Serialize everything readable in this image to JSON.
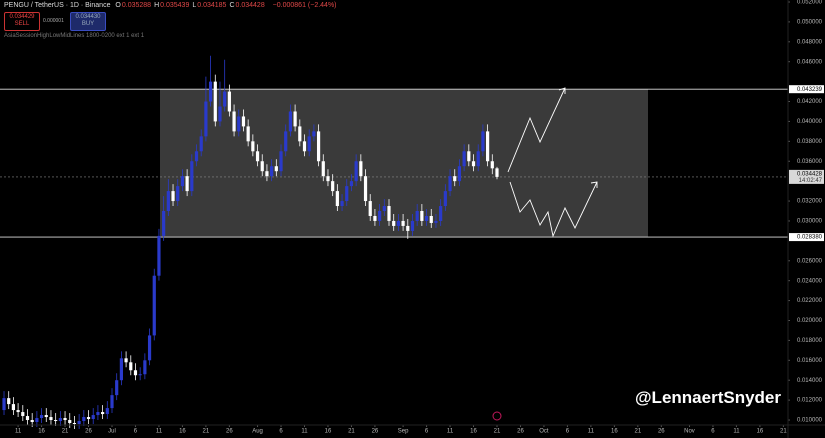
{
  "header": {
    "symbol": "PENGU / TetherUS · 1D · Binance",
    "ohlc": [
      {
        "label": "O",
        "value": "0.035288"
      },
      {
        "label": "H",
        "value": "0.035439"
      },
      {
        "label": "L",
        "value": "0.034185"
      },
      {
        "label": "C",
        "value": "0.034428"
      }
    ],
    "change": "−0.000861 (−2.44%)",
    "sell": {
      "price": "0.034429",
      "label": "SELL"
    },
    "spread": "0.000001",
    "buy": {
      "price": "0.034430",
      "label": "BUY"
    },
    "indicator": "AsiaSessionHighLowMidLines 1800-0200 ext 1 ext 1"
  },
  "watermark": "@LennaertSnyder",
  "chart_data": {
    "type": "candlestick",
    "up_color": "#2a3acb",
    "down_color": "#ffffff",
    "x": [
      "06-08",
      "06-09",
      "06-10",
      "06-11",
      "06-12",
      "06-13",
      "06-14",
      "06-15",
      "06-16",
      "06-17",
      "06-18",
      "06-19",
      "06-20",
      "06-21",
      "06-22",
      "06-23",
      "06-24",
      "06-25",
      "06-26",
      "06-27",
      "06-28",
      "06-29",
      "06-30",
      "07-01",
      "07-02",
      "07-03",
      "07-04",
      "07-05",
      "07-06",
      "07-07",
      "07-08",
      "07-09",
      "07-10",
      "07-11",
      "07-12",
      "07-13",
      "07-14",
      "07-15",
      "07-16",
      "07-17",
      "07-18",
      "07-19",
      "07-20",
      "07-21",
      "07-22",
      "07-23",
      "07-24",
      "07-25",
      "07-26",
      "07-27",
      "07-28",
      "07-29",
      "07-30",
      "07-31",
      "08-01",
      "08-02",
      "08-03",
      "08-04",
      "08-05",
      "08-06",
      "08-07",
      "08-08",
      "08-09",
      "08-10",
      "08-11",
      "08-12",
      "08-13",
      "08-14",
      "08-15",
      "08-16",
      "08-17",
      "08-18",
      "08-19",
      "08-20",
      "08-21",
      "08-22",
      "08-23",
      "08-24",
      "08-25",
      "08-26",
      "08-27",
      "08-28",
      "08-29",
      "08-30",
      "08-31",
      "09-01",
      "09-02",
      "09-03",
      "09-04",
      "09-05",
      "09-06",
      "09-07",
      "09-08",
      "09-09",
      "09-10",
      "09-11",
      "09-12",
      "09-13",
      "09-14",
      "09-15",
      "09-16",
      "09-17",
      "09-18",
      "09-19",
      "09-20",
      "09-21"
    ],
    "open": [
      0.011,
      0.0122,
      0.0116,
      0.011,
      0.0108,
      0.0104,
      0.01,
      0.0098,
      0.0102,
      0.0105,
      0.0103,
      0.01,
      0.0099,
      0.0102,
      0.01,
      0.0097,
      0.0096,
      0.0099,
      0.0103,
      0.0101,
      0.0105,
      0.0108,
      0.0106,
      0.0112,
      0.0125,
      0.014,
      0.0162,
      0.0158,
      0.015,
      0.0145,
      0.0146,
      0.016,
      0.0185,
      0.0245,
      0.0285,
      0.031,
      0.033,
      0.032,
      0.0335,
      0.0345,
      0.033,
      0.036,
      0.037,
      0.0385,
      0.042,
      0.044,
      0.04,
      0.0415,
      0.043,
      0.041,
      0.039,
      0.0405,
      0.0395,
      0.038,
      0.037,
      0.036,
      0.035,
      0.0345,
      0.0355,
      0.035,
      0.037,
      0.039,
      0.041,
      0.0395,
      0.038,
      0.037,
      0.0385,
      0.039,
      0.036,
      0.0345,
      0.034,
      0.033,
      0.0315,
      0.032,
      0.0335,
      0.034,
      0.036,
      0.0345,
      0.032,
      0.0305,
      0.03,
      0.031,
      0.0315,
      0.03,
      0.0295,
      0.03,
      0.0295,
      0.029,
      0.03,
      0.031,
      0.03,
      0.0305,
      0.0298,
      0.03,
      0.0315,
      0.033,
      0.0345,
      0.034,
      0.0355,
      0.037,
      0.036,
      0.0355,
      0.037,
      0.039,
      0.036,
      0.035288
    ],
    "high": [
      0.0129,
      0.0129,
      0.0123,
      0.0117,
      0.0115,
      0.0111,
      0.0107,
      0.0109,
      0.0112,
      0.0112,
      0.011,
      0.0107,
      0.0109,
      0.0109,
      0.0107,
      0.0104,
      0.0106,
      0.011,
      0.011,
      0.0112,
      0.0115,
      0.0115,
      0.0119,
      0.0132,
      0.0147,
      0.0169,
      0.0169,
      0.0165,
      0.0157,
      0.0153,
      0.0167,
      0.0192,
      0.0252,
      0.0292,
      0.0325,
      0.0342,
      0.0337,
      0.0342,
      0.0352,
      0.0352,
      0.0367,
      0.0377,
      0.0392,
      0.0445,
      0.0466,
      0.0447,
      0.044,
      0.0462,
      0.0437,
      0.0417,
      0.0412,
      0.0412,
      0.0402,
      0.0387,
      0.0377,
      0.0367,
      0.0357,
      0.0362,
      0.0362,
      0.0377,
      0.0397,
      0.0417,
      0.0417,
      0.0402,
      0.0387,
      0.0392,
      0.0397,
      0.0397,
      0.0367,
      0.0352,
      0.0347,
      0.0337,
      0.0327,
      0.0342,
      0.0347,
      0.0367,
      0.0367,
      0.0352,
      0.0327,
      0.0312,
      0.0317,
      0.0322,
      0.0322,
      0.0307,
      0.0307,
      0.0307,
      0.0302,
      0.0307,
      0.0317,
      0.0317,
      0.0312,
      0.0312,
      0.0307,
      0.0322,
      0.0337,
      0.0352,
      0.0352,
      0.0362,
      0.0377,
      0.0377,
      0.0367,
      0.0377,
      0.0397,
      0.0397,
      0.0367,
      0.035439
    ],
    "low": [
      0.0105,
      0.0111,
      0.0105,
      0.0103,
      0.0099,
      0.0095,
      0.0093,
      0.0093,
      0.0097,
      0.0098,
      0.0095,
      0.0094,
      0.0094,
      0.0095,
      0.0092,
      0.0091,
      0.0091,
      0.0094,
      0.0096,
      0.0096,
      0.01,
      0.0101,
      0.0101,
      0.0107,
      0.012,
      0.0135,
      0.0153,
      0.0145,
      0.014,
      0.014,
      0.0141,
      0.0155,
      0.018,
      0.024,
      0.028,
      0.0305,
      0.0315,
      0.0315,
      0.033,
      0.0325,
      0.0325,
      0.0355,
      0.0365,
      0.038,
      0.0415,
      0.0395,
      0.0395,
      0.041,
      0.0405,
      0.0385,
      0.0385,
      0.039,
      0.0375,
      0.0365,
      0.0355,
      0.0345,
      0.034,
      0.034,
      0.0345,
      0.0345,
      0.0365,
      0.0385,
      0.039,
      0.0375,
      0.0365,
      0.0365,
      0.038,
      0.0355,
      0.034,
      0.0335,
      0.0325,
      0.031,
      0.031,
      0.0315,
      0.033,
      0.0335,
      0.034,
      0.0315,
      0.03,
      0.0295,
      0.0295,
      0.0305,
      0.0295,
      0.029,
      0.029,
      0.029,
      0.0282,
      0.0285,
      0.0295,
      0.0295,
      0.0295,
      0.0293,
      0.0293,
      0.0295,
      0.031,
      0.0325,
      0.0335,
      0.0335,
      0.035,
      0.0355,
      0.035,
      0.035,
      0.0365,
      0.0355,
      0.0347,
      0.034185
    ],
    "close": [
      0.0122,
      0.0116,
      0.011,
      0.0108,
      0.0104,
      0.01,
      0.0098,
      0.0102,
      0.0105,
      0.0103,
      0.01,
      0.0099,
      0.0102,
      0.01,
      0.0097,
      0.0096,
      0.0099,
      0.0103,
      0.0101,
      0.0105,
      0.0108,
      0.0106,
      0.0112,
      0.0125,
      0.014,
      0.0162,
      0.0158,
      0.015,
      0.0145,
      0.0146,
      0.016,
      0.0185,
      0.0245,
      0.0285,
      0.031,
      0.033,
      0.032,
      0.0335,
      0.0345,
      0.033,
      0.036,
      0.037,
      0.0385,
      0.042,
      0.044,
      0.04,
      0.0415,
      0.043,
      0.041,
      0.039,
      0.0405,
      0.0395,
      0.038,
      0.037,
      0.036,
      0.035,
      0.0345,
      0.0355,
      0.035,
      0.037,
      0.039,
      0.041,
      0.0395,
      0.038,
      0.037,
      0.0385,
      0.039,
      0.036,
      0.0345,
      0.034,
      0.033,
      0.0315,
      0.032,
      0.0335,
      0.034,
      0.036,
      0.0345,
      0.032,
      0.0305,
      0.03,
      0.031,
      0.0315,
      0.03,
      0.0295,
      0.03,
      0.0295,
      0.029,
      0.03,
      0.031,
      0.03,
      0.0305,
      0.0298,
      0.03,
      0.0315,
      0.033,
      0.0345,
      0.034,
      0.0355,
      0.037,
      0.036,
      0.0355,
      0.037,
      0.039,
      0.036,
      0.035288,
      0.034428
    ],
    "ylim": [
      0.0095,
      0.0522
    ],
    "yticks": [
      {
        "value": 0.01,
        "label": "0.010000"
      },
      {
        "value": 0.012,
        "label": "0.012000"
      },
      {
        "value": 0.014,
        "label": "0.014000"
      },
      {
        "value": 0.016,
        "label": "0.016000"
      },
      {
        "value": 0.018,
        "label": "0.018000"
      },
      {
        "value": 0.02,
        "label": "0.020000"
      },
      {
        "value": 0.022,
        "label": "0.022000"
      },
      {
        "value": 0.024,
        "label": "0.024000"
      },
      {
        "value": 0.026,
        "label": "0.026000"
      },
      {
        "value": 0.03,
        "label": "0.030000"
      },
      {
        "value": 0.032,
        "label": "0.032000"
      },
      {
        "value": 0.036,
        "label": "0.036000"
      },
      {
        "value": 0.038,
        "label": "0.038000"
      },
      {
        "value": 0.04,
        "label": "0.040000"
      },
      {
        "value": 0.042,
        "label": "0.042000"
      },
      {
        "value": 0.046,
        "label": "0.046000"
      },
      {
        "value": 0.048,
        "label": "0.048000"
      },
      {
        "value": 0.05,
        "label": "0.050000"
      },
      {
        "value": 0.052,
        "label": "0.052000"
      }
    ],
    "xticks": [
      {
        "value": "06-11",
        "label": "11"
      },
      {
        "value": "06-16",
        "label": "16"
      },
      {
        "value": "06-21",
        "label": "21"
      },
      {
        "value": "06-26",
        "label": "26"
      },
      {
        "value": "07-01",
        "label": "Jul"
      },
      {
        "value": "07-06",
        "label": "6"
      },
      {
        "value": "07-11",
        "label": "11"
      },
      {
        "value": "07-16",
        "label": "16"
      },
      {
        "value": "07-21",
        "label": "21"
      },
      {
        "value": "07-26",
        "label": "26"
      },
      {
        "value": "08-01",
        "label": "Aug"
      },
      {
        "value": "08-06",
        "label": "6"
      },
      {
        "value": "08-11",
        "label": "11"
      },
      {
        "value": "08-16",
        "label": "16"
      },
      {
        "value": "08-21",
        "label": "21"
      },
      {
        "value": "08-26",
        "label": "26"
      },
      {
        "value": "09-01",
        "label": "Sep"
      },
      {
        "value": "09-06",
        "label": "6"
      },
      {
        "value": "09-11",
        "label": "11"
      },
      {
        "value": "09-16",
        "label": "16"
      },
      {
        "value": "09-21",
        "label": "21"
      },
      {
        "value": "09-26",
        "label": "26"
      },
      {
        "value": "10-01",
        "label": "Oct"
      },
      {
        "value": "10-06",
        "label": "6"
      },
      {
        "value": "10-11",
        "label": "11"
      },
      {
        "value": "10-16",
        "label": "16"
      },
      {
        "value": "10-21",
        "label": "21"
      },
      {
        "value": "10-26",
        "label": "26"
      },
      {
        "value": "11-01",
        "label": "Nov"
      },
      {
        "value": "11-06",
        "label": "6"
      },
      {
        "value": "11-11",
        "label": "11"
      },
      {
        "value": "11-16",
        "label": "16"
      },
      {
        "value": "11-21",
        "label": "21"
      }
    ],
    "range_high": 0.043239,
    "range_low": {
      "value": 0.02838,
      "label": "0.028380"
    },
    "last_price": 0.034428,
    "countdown": "14:02:47"
  }
}
